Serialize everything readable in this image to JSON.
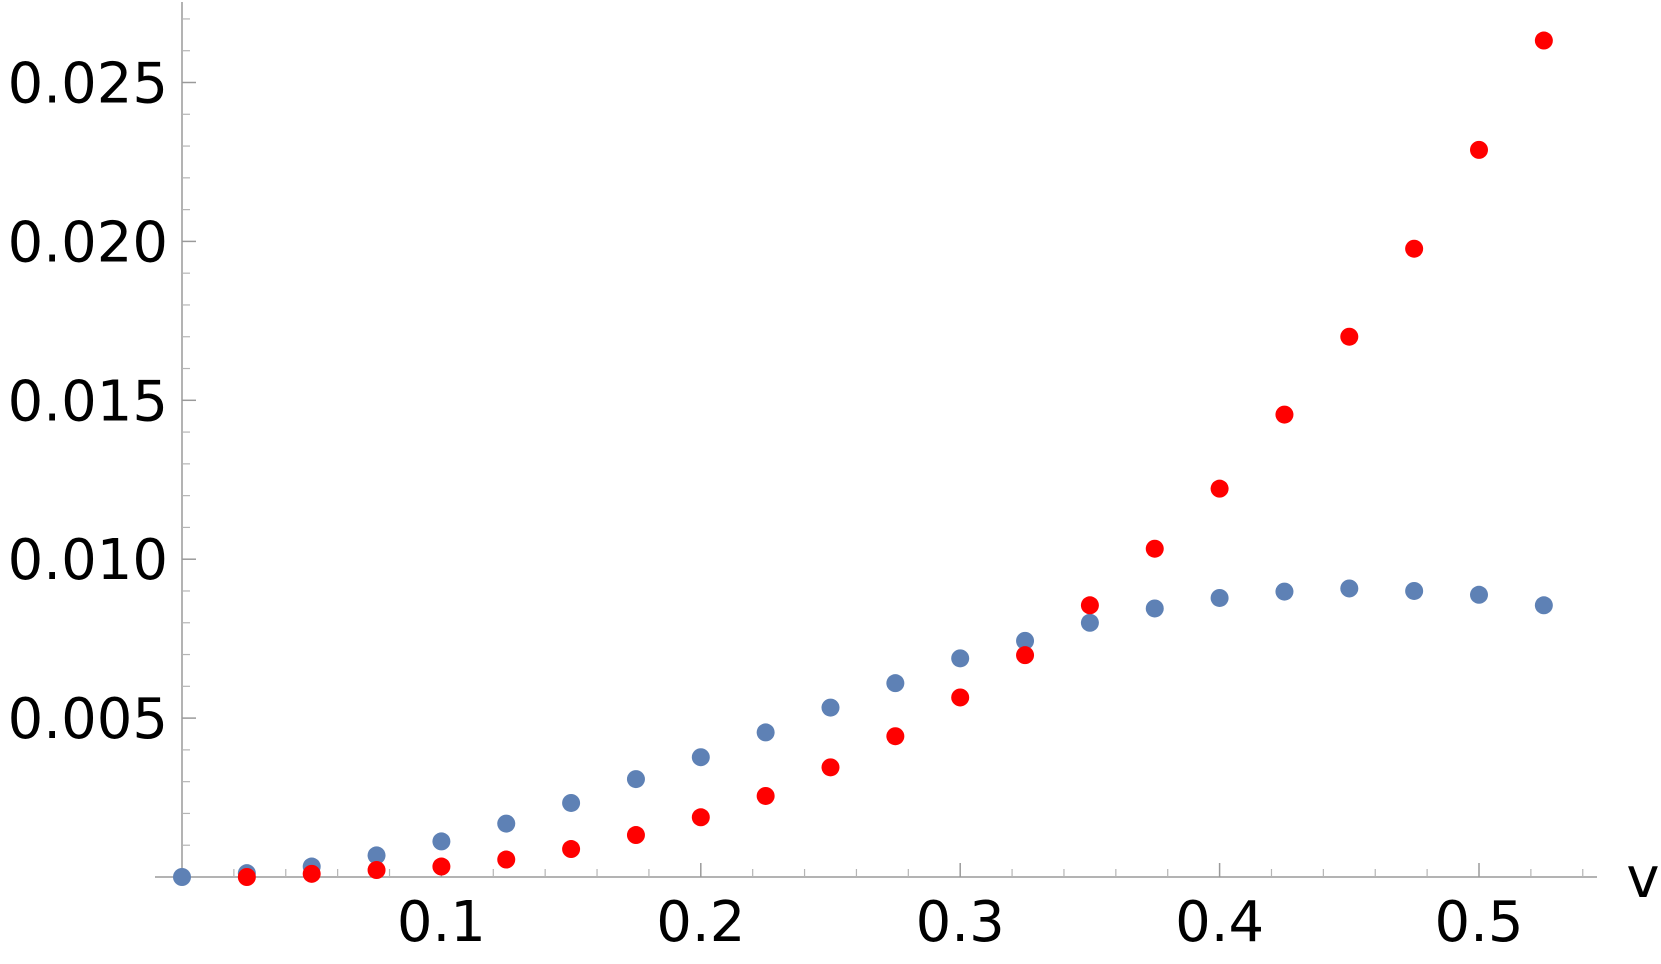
{
  "chart_data": {
    "type": "scatter",
    "xlabel": "v",
    "ylabel": "",
    "xlim": [
      0,
      0.55
    ],
    "ylim": [
      0,
      0.0275
    ],
    "x_ticks": [
      "0.1",
      "0.2",
      "0.3",
      "0.4",
      "0.5"
    ],
    "y_ticks": [
      "0.005",
      "0.010",
      "0.015",
      "0.020",
      "0.025"
    ],
    "grid": false,
    "legend": "none",
    "series": [
      {
        "color": "#5e81b5",
        "x": [
          0,
          0.025,
          0.05,
          0.075,
          0.1,
          0.125,
          0.15,
          0.175,
          0.2,
          0.225,
          0.25,
          0.275,
          0.3,
          0.325,
          0.35,
          0.375,
          0.4,
          0.425,
          0.45,
          0.475,
          0.5,
          0.525
        ],
        "y": [
          0.0,
          0.00012,
          0.00033,
          0.00068,
          0.00112,
          0.00168,
          0.00233,
          0.00308,
          0.00377,
          0.00455,
          0.00533,
          0.0061,
          0.00688,
          0.00743,
          0.008,
          0.00845,
          0.00878,
          0.00898,
          0.00908,
          0.009,
          0.00888,
          0.00855
        ]
      },
      {
        "color": "#ff0000",
        "x": [
          0.025,
          0.05,
          0.075,
          0.1,
          0.125,
          0.15,
          0.175,
          0.2,
          0.225,
          0.25,
          0.275,
          0.3,
          0.325,
          0.35,
          0.375,
          0.4,
          0.425,
          0.45,
          0.475,
          0.5,
          0.525
        ],
        "y": [
          0.0,
          0.0001,
          0.00022,
          0.00033,
          0.00055,
          0.00088,
          0.00132,
          0.00188,
          0.00255,
          0.00345,
          0.00443,
          0.00565,
          0.00698,
          0.00855,
          0.01033,
          0.01222,
          0.01455,
          0.017,
          0.01977,
          0.02288,
          0.02632
        ]
      }
    ]
  }
}
